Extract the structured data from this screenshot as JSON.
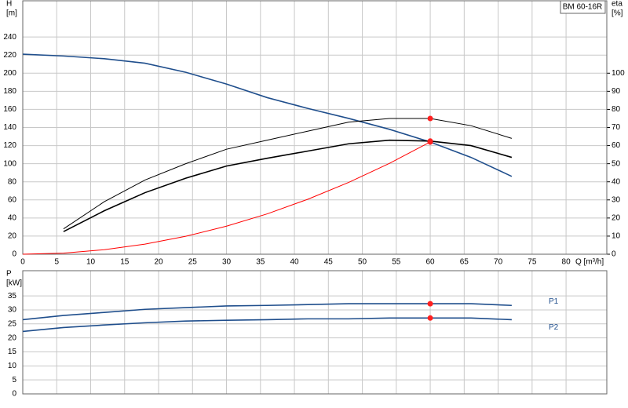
{
  "chart_data": [
    {
      "type": "line",
      "title": "BM 60-16R",
      "ylabel": [
        "H",
        "[m]"
      ],
      "y2label": [
        "eta",
        "[%]"
      ],
      "xlabel": "Q [m³/h]",
      "x": [
        0,
        6,
        12,
        18,
        24,
        30,
        36,
        42,
        48,
        54,
        60,
        66,
        72
      ],
      "xlim": [
        0,
        86
      ],
      "xticks": [
        0,
        5,
        10,
        15,
        20,
        25,
        30,
        35,
        40,
        45,
        50,
        55,
        60,
        65,
        70,
        75,
        80
      ],
      "ylim": [
        0,
        280
      ],
      "yticks": [
        0,
        20,
        40,
        60,
        80,
        100,
        120,
        140,
        160,
        180,
        200,
        220,
        240
      ],
      "y2lim": [
        0,
        140
      ],
      "y2ticks": [
        0,
        10,
        20,
        30,
        40,
        50,
        60,
        70,
        80,
        90,
        100
      ],
      "grid": true,
      "marker_x": 60,
      "series": [
        {
          "color": "#1f4e8c",
          "values": [
            221,
            219,
            216,
            211,
            201,
            188,
            173,
            161,
            150,
            138,
            124,
            107,
            86
          ]
        },
        {
          "color": "#000000",
          "axis": "y2",
          "values": [
            null,
            14,
            29,
            41,
            50,
            58,
            63,
            68,
            73,
            75,
            75,
            71,
            64
          ]
        },
        {
          "color": "#000000",
          "axis": "y2",
          "values": [
            null,
            12.5,
            24,
            34,
            42,
            48.7,
            53,
            57,
            61,
            63,
            62.5,
            60,
            53.5
          ]
        },
        {
          "color": "#ff0000",
          "values": [
            0,
            1.2,
            5,
            11.2,
            19.8,
            31,
            44.6,
            60.8,
            79.4,
            100.4,
            124,
            null,
            null
          ]
        }
      ]
    },
    {
      "type": "line",
      "ylabel": [
        "P",
        "[kW]"
      ],
      "x": [
        0,
        6,
        12,
        18,
        24,
        30,
        36,
        42,
        48,
        54,
        60,
        66,
        72
      ],
      "xlim": [
        0,
        86
      ],
      "xticks": [
        0,
        5,
        10,
        15,
        20,
        25,
        30,
        35,
        40,
        45,
        50,
        55,
        60,
        65,
        70,
        75,
        80
      ],
      "ylim": [
        0,
        44
      ],
      "yticks": [
        0,
        5,
        10,
        15,
        20,
        25,
        30,
        35
      ],
      "grid": true,
      "marker_x": 60,
      "series": [
        {
          "name": "P1",
          "color": "#1f4e8c",
          "values": [
            26.5,
            28,
            29.1,
            30.2,
            30.8,
            31.4,
            31.6,
            31.9,
            32.2,
            32.2,
            32.2,
            32.2,
            31.6
          ]
        },
        {
          "name": "P2",
          "color": "#1f4e8c",
          "values": [
            22.3,
            23.7,
            24.6,
            25.4,
            26,
            26.3,
            26.5,
            26.8,
            26.8,
            27.1,
            27.1,
            27.1,
            26.5
          ]
        }
      ]
    }
  ]
}
